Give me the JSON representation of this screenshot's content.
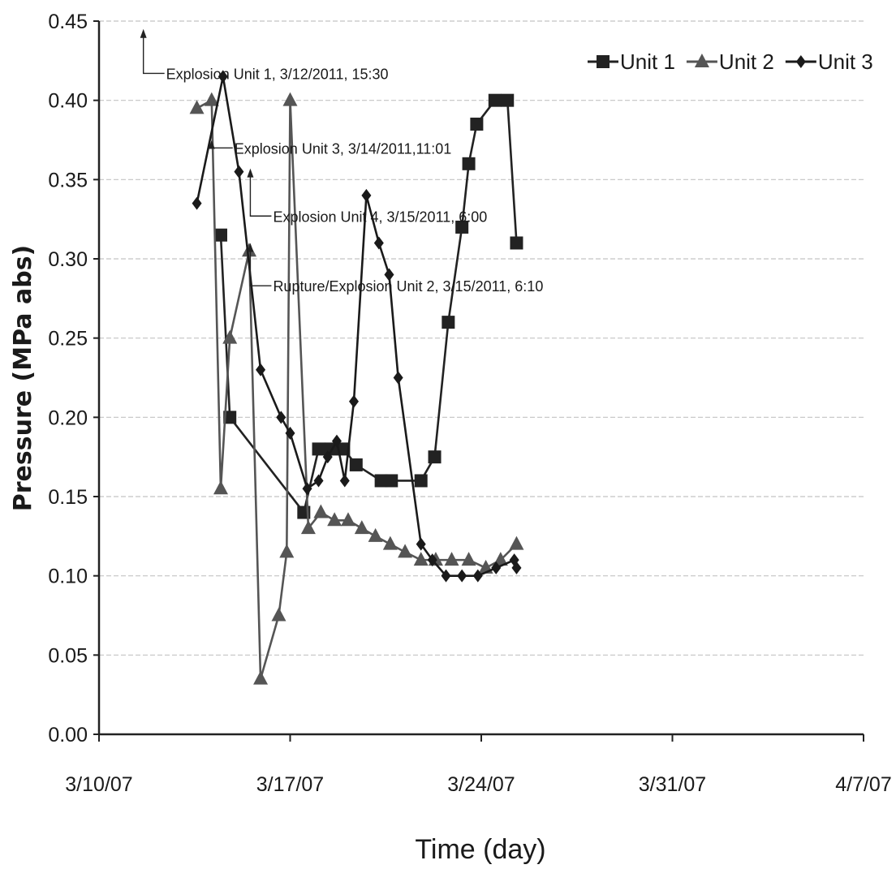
{
  "chart_data": {
    "type": "line",
    "title": "",
    "xlabel": "Time (day)",
    "ylabel": "Pressure (MPa abs)",
    "x_axis": {
      "type": "date",
      "min": "2007-03-10",
      "max": "2007-04-07",
      "ticks": [
        "2007-03-10",
        "2007-03-17",
        "2007-03-24",
        "2007-03-31",
        "2007-04-07"
      ],
      "tick_labels": [
        "3/10/07",
        "3/17/07",
        "3/24/07",
        "3/31/07",
        "4/7/07"
      ]
    },
    "y_axis": {
      "ylim": [
        0,
        0.45
      ],
      "ticks": [
        0,
        0.05,
        0.1,
        0.15,
        0.2,
        0.25,
        0.3,
        0.35,
        0.4,
        0.45
      ],
      "tick_labels": [
        "0.00",
        "0.05",
        "0.10",
        "0.15",
        "0.20",
        "0.25",
        "0.30",
        "0.35",
        "0.40",
        "0.45"
      ]
    },
    "grid": "horizontal",
    "legend": {
      "placement": "top-right"
    },
    "series": [
      {
        "name": "Unit 1",
        "marker": "square",
        "color": "#222222",
        "points": [
          [
            "2007-03-14 11:00",
            0.315
          ],
          [
            "2007-03-14 19:00",
            0.2
          ],
          [
            "2007-03-17 12:00",
            0.14
          ],
          [
            "2007-03-18 01:00",
            0.18
          ],
          [
            "2007-03-18 12:00",
            0.18
          ],
          [
            "2007-03-18 23:00",
            0.18
          ],
          [
            "2007-03-19 10:00",
            0.17
          ],
          [
            "2007-03-20 08:00",
            0.16
          ],
          [
            "2007-03-20 17:00",
            0.16
          ],
          [
            "2007-03-21 19:00",
            0.16
          ],
          [
            "2007-03-22 07:00",
            0.175
          ],
          [
            "2007-03-22 19:00",
            0.26
          ],
          [
            "2007-03-23 07:00",
            0.32
          ],
          [
            "2007-03-23 13:00",
            0.36
          ],
          [
            "2007-03-23 20:00",
            0.385
          ],
          [
            "2007-03-24 12:00",
            0.4
          ],
          [
            "2007-03-24 23:00",
            0.4
          ],
          [
            "2007-03-25 07:00",
            0.31
          ]
        ]
      },
      {
        "name": "Unit 2",
        "marker": "triangle",
        "color": "#555555",
        "points": [
          [
            "2007-03-13 14:00",
            0.395
          ],
          [
            "2007-03-14 03:00",
            0.4
          ],
          [
            "2007-03-14 11:00",
            0.155
          ],
          [
            "2007-03-14 19:00",
            0.25
          ],
          [
            "2007-03-15 12:00",
            0.305
          ],
          [
            "2007-03-15 22:00",
            0.035
          ],
          [
            "2007-03-16 14:00",
            0.075
          ],
          [
            "2007-03-16 21:00",
            0.115
          ],
          [
            "2007-03-17 00:00",
            0.4
          ],
          [
            "2007-03-17 16:00",
            0.13
          ],
          [
            "2007-03-18 03:00",
            0.14
          ],
          [
            "2007-03-18 15:00",
            0.135
          ],
          [
            "2007-03-19 03:00",
            0.135
          ],
          [
            "2007-03-19 15:00",
            0.13
          ],
          [
            "2007-03-20 03:00",
            0.125
          ],
          [
            "2007-03-20 16:00",
            0.12
          ],
          [
            "2007-03-21 05:00",
            0.115
          ],
          [
            "2007-03-21 19:00",
            0.11
          ],
          [
            "2007-03-22 08:00",
            0.11
          ],
          [
            "2007-03-22 22:00",
            0.11
          ],
          [
            "2007-03-23 13:00",
            0.11
          ],
          [
            "2007-03-24 04:00",
            0.105
          ],
          [
            "2007-03-24 17:00",
            0.11
          ],
          [
            "2007-03-25 07:00",
            0.12
          ]
        ]
      },
      {
        "name": "Unit 3",
        "marker": "diamond",
        "color": "#1a1a1a",
        "points": [
          [
            "2007-03-13 14:00",
            0.335
          ],
          [
            "2007-03-14 13:00",
            0.415
          ],
          [
            "2007-03-15 03:00",
            0.355
          ],
          [
            "2007-03-15 22:00",
            0.23
          ],
          [
            "2007-03-16 16:00",
            0.2
          ],
          [
            "2007-03-17 00:00",
            0.19
          ],
          [
            "2007-03-17 15:00",
            0.155
          ],
          [
            "2007-03-18 01:00",
            0.16
          ],
          [
            "2007-03-18 09:00",
            0.175
          ],
          [
            "2007-03-18 17:00",
            0.185
          ],
          [
            "2007-03-19 00:00",
            0.16
          ],
          [
            "2007-03-19 08:00",
            0.21
          ],
          [
            "2007-03-19 19:00",
            0.34
          ],
          [
            "2007-03-20 06:00",
            0.31
          ],
          [
            "2007-03-20 15:00",
            0.29
          ],
          [
            "2007-03-20 23:00",
            0.225
          ],
          [
            "2007-03-21 19:00",
            0.12
          ],
          [
            "2007-03-22 05:00",
            0.11
          ],
          [
            "2007-03-22 17:00",
            0.1
          ],
          [
            "2007-03-23 07:00",
            0.1
          ],
          [
            "2007-03-23 21:00",
            0.1
          ],
          [
            "2007-03-24 13:00",
            0.105
          ],
          [
            "2007-03-25 05:00",
            0.11
          ],
          [
            "2007-03-25 07:00",
            0.105
          ]
        ]
      }
    ],
    "annotations": [
      {
        "text": "Explosion Unit 1, 3/12/2011, 15:30",
        "arrow_tip": [
          "2007-03-11 15:00",
          0.445
        ],
        "arrow_elbow": [
          "2007-03-11 15:00",
          0.417
        ]
      },
      {
        "text": "Explosion Unit 3, 3/14/2011,11:01",
        "arrow_tip": [
          "2007-03-14 03:00",
          0.375
        ],
        "arrow_elbow": [
          "2007-03-14 03:00",
          0.37
        ]
      },
      {
        "text": "Explosion Unit 4, 3/15/2011, 6:00",
        "arrow_tip": [
          "2007-03-15 13:00",
          0.357
        ],
        "arrow_elbow": [
          "2007-03-15 13:00",
          0.327
        ]
      },
      {
        "text": "Rupture/Explosion Unit 2, 3/15/2011, 6:10",
        "arrow_tip": [
          "2007-03-15 13:00",
          0.31
        ],
        "arrow_elbow": [
          "2007-03-15 13:00",
          0.283
        ]
      }
    ]
  }
}
